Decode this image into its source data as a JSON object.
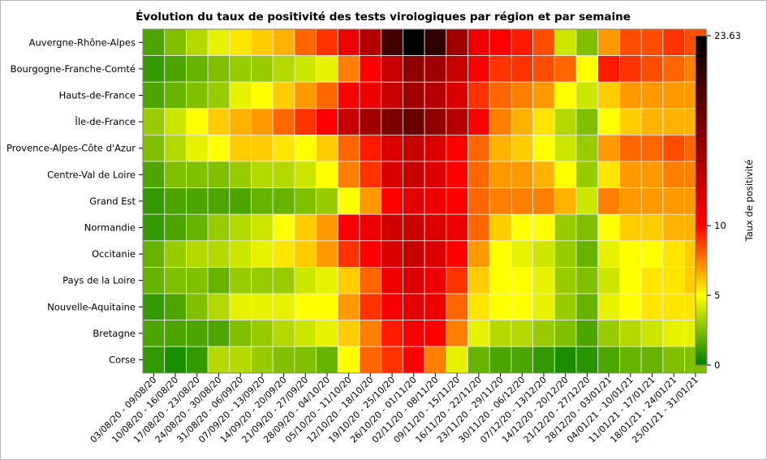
{
  "chart_data": {
    "type": "heatmap",
    "title": "Évolution du taux de positivité des tests virologiques par région et par semaine",
    "rows": [
      "Auvergne-Rhône-Alpes",
      "Bourgogne-Franche-Comté",
      "Hauts-de-France",
      "Île-de-France",
      "Provence-Alpes-Côte d'Azur",
      "Centre-Val de Loire",
      "Grand Est",
      "Normandie",
      "Occitanie",
      "Pays de la Loire",
      "Nouvelle-Aquitaine",
      "Bretagne",
      "Corse"
    ],
    "columns": [
      "03/08/20 - 09/08/20",
      "10/08/20 - 16/08/20",
      "17/08/20 - 23/08/20",
      "24/08/20 - 30/08/20",
      "31/08/20 - 06/09/20",
      "07/09/20 - 13/09/20",
      "14/09/20 - 20/09/20",
      "21/09/20 - 27/09/20",
      "28/09/20 - 04/10/20",
      "05/10/20 - 11/10/20",
      "12/10/20 - 18/10/20",
      "19/10/20 - 25/10/20",
      "26/10/20 - 01/11/20",
      "02/11/20 - 08/11/20",
      "09/11/20 - 15/11/20",
      "16/11/20 - 22/11/20",
      "23/11/20 - 29/11/20",
      "30/11/20 - 06/12/20",
      "07/12/20 - 13/12/20",
      "14/12/20 - 20/12/20",
      "21/12/20 - 27/12/20",
      "28/12/20 - 03/01/21",
      "04/01/21 - 10/01/21",
      "11/01/21 - 17/01/21",
      "18/01/21 - 24/01/21",
      "25/01/21 - 31/01/21"
    ],
    "values": [
      [
        1.5,
        2.5,
        3.5,
        4.5,
        5.5,
        6,
        6.5,
        8,
        9,
        11,
        14,
        20,
        23.6,
        21,
        15,
        11,
        10,
        9.5,
        8.5,
        4,
        2.5,
        7,
        8.5,
        8.5,
        9,
        8.5
      ],
      [
        1,
        1.5,
        2,
        2.5,
        3,
        3,
        3.5,
        4,
        4.5,
        7.5,
        10,
        13,
        16,
        15,
        13,
        10,
        9,
        9,
        8.5,
        8,
        5,
        9.5,
        9,
        8.5,
        8,
        7.5
      ],
      [
        1.5,
        2,
        2.5,
        3,
        4.5,
        5,
        6,
        7,
        8,
        10,
        11,
        13,
        15,
        14,
        12,
        9,
        8,
        7.5,
        7,
        5,
        4,
        6,
        7,
        7,
        7,
        7
      ],
      [
        3,
        4,
        5,
        6,
        6.5,
        7,
        8,
        9,
        10,
        13,
        15,
        17,
        18,
        16,
        14,
        10,
        7.5,
        6.5,
        5.5,
        3.5,
        2.5,
        5,
        6,
        6.5,
        6.5,
        6.5
      ],
      [
        2.5,
        3.5,
        4.5,
        5,
        6,
        6,
        5.5,
        5,
        6,
        8,
        9.5,
        12,
        13,
        12,
        10,
        8,
        6.5,
        6,
        5,
        4,
        3,
        7,
        8,
        8,
        8.5,
        8
      ],
      [
        1.5,
        2.5,
        2.5,
        2.5,
        3,
        3.5,
        3.5,
        4,
        5,
        7.5,
        9,
        12,
        13,
        12,
        10,
        8,
        7,
        7,
        6.5,
        5,
        3,
        5.5,
        7,
        7,
        7.5,
        7.5
      ],
      [
        1,
        1.5,
        1.5,
        1.5,
        1.5,
        2,
        2,
        2.5,
        3,
        5,
        7,
        10,
        11.5,
        11,
        10,
        8,
        7.5,
        7.5,
        7.5,
        6.5,
        4,
        7.5,
        7,
        7,
        7,
        7
      ],
      [
        1,
        1.5,
        2,
        3,
        3.5,
        4,
        5,
        6,
        7,
        10,
        11,
        12.5,
        13,
        12,
        11,
        8,
        6,
        5,
        5,
        3,
        2.5,
        5,
        6,
        6,
        6.5,
        6.5
      ],
      [
        2,
        3,
        3.5,
        3.5,
        4,
        4.5,
        5.5,
        6,
        7,
        9,
        10,
        12,
        13,
        12,
        10,
        7,
        5,
        4.5,
        4,
        3,
        2,
        4.5,
        5,
        5,
        5.5,
        6
      ],
      [
        2,
        2.5,
        2.5,
        2,
        3,
        3,
        3,
        4,
        4.5,
        6,
        8,
        11,
        12,
        11,
        9,
        6,
        5,
        5,
        4.5,
        3,
        2.5,
        4,
        5,
        5.5,
        5.5,
        6
      ],
      [
        1,
        1.5,
        2.5,
        3.5,
        4.5,
        4.5,
        4.5,
        5,
        5,
        7,
        9,
        10.5,
        11.5,
        11,
        8,
        5.5,
        5,
        5,
        4.5,
        3,
        2,
        4.5,
        5,
        5.5,
        5.5,
        5.5
      ],
      [
        1.5,
        1.5,
        1.5,
        1.5,
        2.5,
        3,
        3.5,
        4,
        4.5,
        6,
        7.5,
        9.5,
        10.5,
        10,
        7.5,
        4.5,
        3.5,
        3.5,
        3,
        2.5,
        1.5,
        3,
        3.5,
        4,
        4.5,
        4.5
      ],
      [
        1,
        0.5,
        1,
        3.5,
        3.5,
        3,
        2.5,
        2.5,
        2,
        5,
        8,
        9,
        10,
        7.5,
        4.5,
        2,
        1.5,
        1.5,
        1,
        0.5,
        0.8,
        1.5,
        2,
        2,
        2.5,
        2.5
      ]
    ],
    "colorbar": {
      "label": "Taux de positivité",
      "min": 0,
      "max": 23.63,
      "ticks": [
        0,
        5,
        10
      ],
      "max_label": "23.63",
      "colors": [
        "#008000",
        "#ffff00",
        "#ff0000",
        "#000000"
      ],
      "color_stops": [
        0,
        5,
        10,
        23.63
      ]
    }
  }
}
